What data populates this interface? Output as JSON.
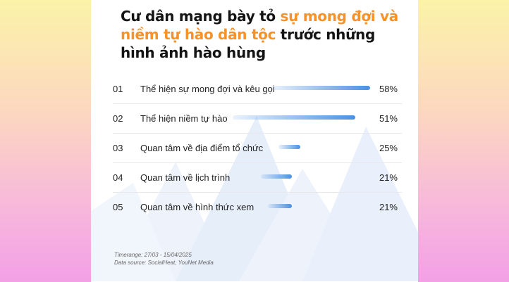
{
  "title": {
    "part1": "Cư dân mạng bày tỏ ",
    "highlight1": "sự mong đợi và niềm tự hào dân tộc",
    "part2": " trước những hình ảnh hào hùng"
  },
  "chart_data": {
    "type": "bar",
    "orientation": "horizontal",
    "ranks": [
      "01",
      "02",
      "03",
      "04",
      "05"
    ],
    "categories": [
      "Thể hiện sự mong đợi và kêu gọi",
      "Thể hiện niềm tự hào",
      "Quan tâm về địa điểm tổ chức",
      "Quan tâm về lịch trình",
      "Quan tâm về hình thức xem"
    ],
    "values": [
      58,
      51,
      25,
      21,
      21
    ],
    "value_labels": [
      "58%",
      "51%",
      "25%",
      "21%",
      "21%"
    ],
    "unit": "%",
    "bar_color": "#4a90e2",
    "grid": false,
    "legend": "none"
  },
  "footer": {
    "timerange": "Timerange: 27/03 - 15/04/2025",
    "source": "Data source: SocialHeat, YouNet Media"
  },
  "colors": {
    "highlight": "#f5922a",
    "text": "#141414"
  }
}
